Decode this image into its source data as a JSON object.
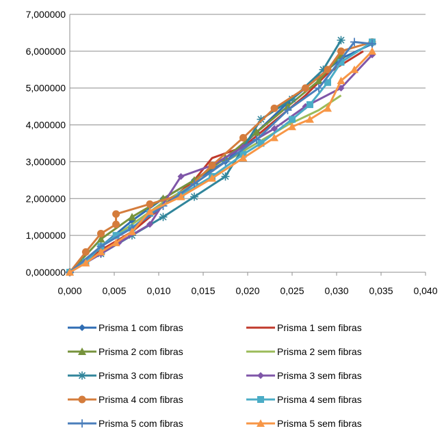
{
  "chart_data": {
    "type": "line",
    "xlim": [
      0,
      0.04
    ],
    "ylim": [
      0,
      7000000
    ],
    "x_ticks": [
      "0,000",
      "0,005",
      "0,010",
      "0,015",
      "0,020",
      "0,025",
      "0,030",
      "0,035",
      "0,040"
    ],
    "y_ticks": [
      "0,000000",
      "1,000000",
      "2,000000",
      "3,000000",
      "4,000000",
      "5,000000",
      "6,000000",
      "7,000000"
    ],
    "grid": "horizontal",
    "legend_position": "bottom",
    "series": [
      {
        "name": "Prisma 1 com fibras",
        "color": "#2f6db3",
        "marker": "diamond",
        "x": [
          0,
          0.0035,
          0.007,
          0.0105,
          0.014,
          0.0175,
          0.021,
          0.0245,
          0.028,
          0.0305,
          0.034
        ],
        "y": [
          0,
          700000,
          1400000,
          2000000,
          2500000,
          3000000,
          3800000,
          4600000,
          5300000,
          5800000,
          6200000
        ]
      },
      {
        "name": "Prisma 1 sem fibras",
        "color": "#c0392b",
        "marker": "none",
        "x": [
          0,
          0.0035,
          0.007,
          0.0105,
          0.014,
          0.016,
          0.0195,
          0.023,
          0.0265,
          0.029,
          0.033
        ],
        "y": [
          0,
          600000,
          1100000,
          1800000,
          2500000,
          3100000,
          3400000,
          4100000,
          4800000,
          5400000,
          6000000
        ]
      },
      {
        "name": "Prisma 2 com fibras",
        "color": "#77933c",
        "marker": "triangle",
        "x": [
          0,
          0.0035,
          0.007,
          0.0105,
          0.014,
          0.0175,
          0.021,
          0.0245,
          0.028,
          0.0305
        ],
        "y": [
          0,
          900000,
          1500000,
          2000000,
          2500000,
          3100000,
          3800000,
          4500000,
          5200000,
          5900000
        ]
      },
      {
        "name": "Prisma 2 sem fibras",
        "color": "#9bbb59",
        "marker": "none",
        "x": [
          0,
          0.0035,
          0.007,
          0.0105,
          0.014,
          0.0175,
          0.021,
          0.0245,
          0.028,
          0.0305
        ],
        "y": [
          0,
          700000,
          1300000,
          1900000,
          2400000,
          3000000,
          3500000,
          4000000,
          4400000,
          4800000
        ]
      },
      {
        "name": "Prisma 3 com fibras",
        "color": "#31859b",
        "marker": "star",
        "x": [
          0,
          0.0035,
          0.007,
          0.0105,
          0.014,
          0.0175,
          0.0215,
          0.025,
          0.0285,
          0.0305
        ],
        "y": [
          0,
          500000,
          1000000,
          1500000,
          2050000,
          2600000,
          4150000,
          4700000,
          5500000,
          6300000
        ]
      },
      {
        "name": "Prisma 3 sem fibras",
        "color": "#7f56a8",
        "marker": "diamond",
        "x": [
          0,
          0.0035,
          0.0055,
          0.009,
          0.0125,
          0.016,
          0.0195,
          0.023,
          0.0265,
          0.0305,
          0.034
        ],
        "y": [
          0,
          500000,
          800000,
          1300000,
          2600000,
          2900000,
          3400000,
          3900000,
          4500000,
          5000000,
          5900000
        ]
      },
      {
        "name": "Prisma 4 com fibras",
        "color": "#d47c3c",
        "marker": "circle",
        "x": [
          0,
          0.0018,
          0.0035,
          0.0052,
          0.0052,
          0.009,
          0.0125,
          0.016,
          0.0195,
          0.023,
          0.0265,
          0.029,
          0.0305,
          0.034
        ],
        "y": [
          0,
          550000,
          1050000,
          1300000,
          1580000,
          1850000,
          2100000,
          2900000,
          3650000,
          4450000,
          5000000,
          5500000,
          6000000,
          6250000
        ]
      },
      {
        "name": "Prisma 4 sem fibras",
        "color": "#4bacc6",
        "marker": "square",
        "x": [
          0,
          0.0018,
          0.0035,
          0.0052,
          0.007,
          0.009,
          0.0125,
          0.016,
          0.0195,
          0.0215,
          0.025,
          0.027,
          0.029,
          0.0305,
          0.034
        ],
        "y": [
          0,
          280000,
          700000,
          1000000,
          1200000,
          1600000,
          2100000,
          2600000,
          3200000,
          3500000,
          4150000,
          4550000,
          5150000,
          5700000,
          6250000
        ]
      },
      {
        "name": "Prisma 5 com fibras",
        "color": "#4a7ebb",
        "marker": "plus",
        "x": [
          0,
          0.0035,
          0.007,
          0.0105,
          0.014,
          0.0175,
          0.021,
          0.0245,
          0.028,
          0.032,
          0.034
        ],
        "y": [
          0,
          700000,
          1200000,
          1800000,
          2400000,
          3000000,
          3600000,
          4400000,
          5000000,
          6250000,
          6200000
        ]
      },
      {
        "name": "Prisma 5 sem fibras",
        "color": "#f79646",
        "marker": "triangle",
        "x": [
          0,
          0.0018,
          0.0035,
          0.0052,
          0.007,
          0.009,
          0.0125,
          0.016,
          0.0195,
          0.023,
          0.025,
          0.027,
          0.029,
          0.0305,
          0.032,
          0.034
        ],
        "y": [
          0,
          250000,
          550000,
          800000,
          1100000,
          1650000,
          2050000,
          2550000,
          3100000,
          3650000,
          3950000,
          4150000,
          4450000,
          5200000,
          5500000,
          6000000
        ]
      }
    ]
  }
}
